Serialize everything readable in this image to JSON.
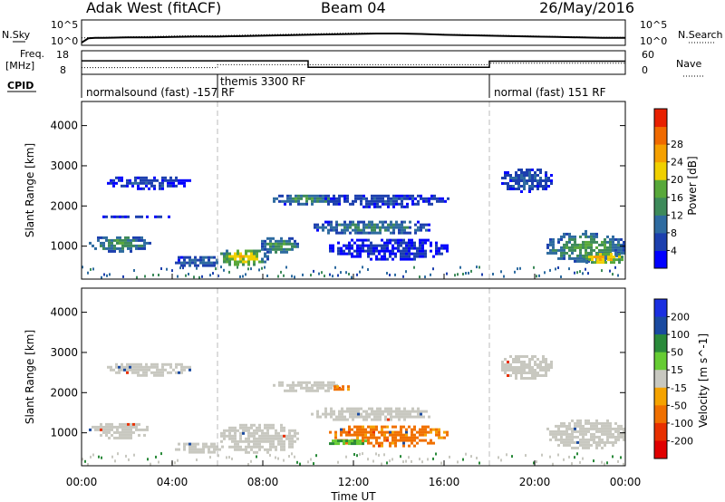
{
  "header": {
    "station": "Adak West (fitACF)",
    "beam": "Beam 04",
    "date": "26/May/2016"
  },
  "side_labels": {
    "nsky": "N.Sky",
    "nsearch": "N.Search",
    "freq_line1": "Freq.",
    "freq_line2": "[MHz]",
    "nave": "Nave",
    "cpid": "CPID"
  },
  "noise_panel": {
    "left_ticks": [
      "10^5",
      "10^0"
    ],
    "right_ticks": [
      "10^5",
      "10^0"
    ]
  },
  "freq_panel": {
    "left_ticks": [
      "18",
      "8"
    ],
    "right_ticks": [
      "60",
      "0"
    ]
  },
  "cpid_modes": [
    {
      "label": "normalsound (fast) -157 RF",
      "start": 0,
      "end": 6
    },
    {
      "label": "themis 3300 RF",
      "start": 6,
      "end": 18
    },
    {
      "label": "normal (fast) 151 RF",
      "start": 18,
      "end": 24
    }
  ],
  "colors": {
    "velocity_gray": "#c8c8c0",
    "power_scale": [
      "#0000ff",
      "#1c3fae",
      "#2e6ba0",
      "#3d8a5a",
      "#58a83a",
      "#f0d000",
      "#f5a000",
      "#f06a00",
      "#e82000"
    ],
    "velocity_scale": [
      "#1a2fe0",
      "#1a4aa0",
      "#2a8a3a",
      "#66cc33",
      "#c8c8c0",
      "#f5a300",
      "#f07000",
      "#e83000",
      "#e00000"
    ]
  },
  "chart_data": [
    {
      "type": "line",
      "title": "",
      "x_range": [
        0,
        24
      ],
      "series": [
        {
          "name": "N.Sky",
          "x": [
            0,
            0.3,
            0.6,
            1,
            2,
            3,
            4,
            5,
            6,
            7,
            8,
            9,
            10,
            11,
            12,
            13,
            14,
            15,
            16,
            17,
            18,
            19,
            20,
            21,
            22,
            23,
            24
          ],
          "y": [
            0.2,
            1.2,
            1.3,
            1.3,
            1.4,
            1.4,
            1.5,
            1.6,
            1.6,
            1.7,
            1.8,
            1.9,
            2.0,
            2.1,
            2.2,
            2.3,
            2.3,
            2.2,
            2.0,
            1.9,
            1.8,
            1.7,
            1.6,
            1.5,
            1.4,
            1.3,
            1.3
          ]
        },
        {
          "name": "N.Search",
          "x": [
            0,
            1,
            2,
            3,
            4,
            5,
            6,
            7,
            8,
            9,
            10,
            11,
            12,
            13,
            14,
            15,
            16,
            17,
            18,
            19,
            20,
            21,
            22,
            23,
            24
          ],
          "y": [
            1.3,
            1.4,
            1.5,
            1.6,
            1.7,
            1.8,
            1.8,
            1.9,
            2.0,
            2.1,
            2.2,
            2.3,
            2.4,
            2.4,
            2.3,
            2.2,
            2.1,
            2.0,
            1.9,
            1.8,
            1.7,
            1.6,
            1.5,
            1.4,
            1.4
          ]
        }
      ],
      "y_ticks": [
        "10^5",
        "10^0"
      ]
    },
    {
      "type": "line",
      "x_range": [
        0,
        24
      ],
      "series": [
        {
          "name": "Freq.",
          "x": [
            0,
            6,
            6,
            10,
            10,
            18,
            18,
            24
          ],
          "y": [
            13.8,
            13.8,
            13.8,
            13.8,
            10.8,
            10.8,
            13.6,
            13.6
          ]
        },
        {
          "name": "Nave",
          "x": [
            0,
            6,
            6,
            10,
            10,
            18,
            18,
            24
          ],
          "y": [
            16,
            16,
            24,
            24,
            24,
            24,
            28,
            28
          ]
        }
      ],
      "y_range_left": [
        8,
        18
      ],
      "y_range_right": [
        0,
        60
      ]
    },
    {
      "type": "heatmap",
      "quantity": "Power",
      "ylabel": "Slant Range [km]",
      "colorbar_label": "Power [dB]",
      "colorbar_ticks": [
        4,
        8,
        12,
        16,
        20,
        24,
        28
      ],
      "x_range": [
        0,
        24
      ],
      "y_range": [
        180,
        4600
      ],
      "y_ticks": [
        1000,
        2000,
        3000,
        4000
      ],
      "mode_boundaries": [
        6,
        18
      ],
      "regions": [
        {
          "t0": 0.2,
          "t1": 3.0,
          "r0": 880,
          "r1": 1310,
          "val": 15
        },
        {
          "t0": 1.0,
          "t1": 4.8,
          "r0": 2450,
          "r1": 2800,
          "val": 7
        },
        {
          "t0": 0.2,
          "t1": 4.5,
          "r0": 1750,
          "r1": 1830,
          "val": 6
        },
        {
          "t0": 4.0,
          "t1": 6.2,
          "r0": 500,
          "r1": 820,
          "val": 10
        },
        {
          "t0": 6.0,
          "t1": 8.2,
          "r0": 520,
          "r1": 980,
          "val": 23
        },
        {
          "t0": 7.8,
          "t1": 9.6,
          "r0": 820,
          "r1": 1290,
          "val": 16
        },
        {
          "t0": 8.2,
          "t1": 11.6,
          "r0": 2050,
          "r1": 2350,
          "val": 14
        },
        {
          "t0": 10.0,
          "t1": 15.5,
          "r0": 1300,
          "r1": 1700,
          "val": 13
        },
        {
          "t0": 10.6,
          "t1": 16.2,
          "r0": 2000,
          "r1": 2350,
          "val": 7
        },
        {
          "t0": 10.8,
          "t1": 16.2,
          "r0": 680,
          "r1": 1250,
          "val": 5
        },
        {
          "t0": 18.4,
          "t1": 20.8,
          "r0": 2350,
          "r1": 3000,
          "val": 8
        },
        {
          "t0": 20.4,
          "t1": 24.0,
          "r0": 600,
          "r1": 1400,
          "val": 16
        },
        {
          "t0": 22.0,
          "t1": 24.0,
          "r0": 560,
          "r1": 900,
          "val": 25
        }
      ]
    },
    {
      "type": "heatmap",
      "quantity": "Velocity",
      "ylabel": "Slant Range [km]",
      "xlabel": "Time UT",
      "colorbar_label": "Velocity [m s^-1]",
      "colorbar_ticks": [
        200,
        100,
        50,
        15,
        -15,
        -50,
        -100,
        -200
      ],
      "x_range": [
        0,
        24
      ],
      "y_range": [
        180,
        4600
      ],
      "y_ticks": [
        1000,
        2000,
        3000,
        4000
      ],
      "x_ticks": [
        "00:00",
        "04:00",
        "08:00",
        "12:00",
        "16:00",
        "20:00",
        "00:00"
      ],
      "mode_boundaries": [
        6,
        18
      ],
      "regions": [
        {
          "t0": 0.2,
          "t1": 3.0,
          "r0": 880,
          "r1": 1310,
          "val": 0
        },
        {
          "t0": 1.0,
          "t1": 4.8,
          "r0": 2450,
          "r1": 2800,
          "val": 0
        },
        {
          "t0": 4.0,
          "t1": 6.2,
          "r0": 500,
          "r1": 820,
          "val": 0
        },
        {
          "t0": 6.0,
          "t1": 9.6,
          "r0": 520,
          "r1": 1290,
          "val": 0
        },
        {
          "t0": 8.2,
          "t1": 11.6,
          "r0": 2050,
          "r1": 2350,
          "val": 0
        },
        {
          "t0": 11.0,
          "t1": 11.8,
          "r0": 2050,
          "r1": 2250,
          "val": -40
        },
        {
          "t0": 10.0,
          "t1": 15.5,
          "r0": 1300,
          "r1": 1700,
          "val": 0
        },
        {
          "t0": 10.8,
          "t1": 16.2,
          "r0": 680,
          "r1": 1250,
          "val": -40
        },
        {
          "t0": 10.8,
          "t1": 12.6,
          "r0": 700,
          "r1": 900,
          "val": 30
        },
        {
          "t0": 18.4,
          "t1": 20.8,
          "r0": 2350,
          "r1": 3000,
          "val": 0
        },
        {
          "t0": 20.4,
          "t1": 24.0,
          "r0": 600,
          "r1": 1400,
          "val": 0
        }
      ]
    }
  ],
  "axes": {
    "ylabel": "Slant Range [km]",
    "xlabel": "Time UT",
    "power_label": "Power [dB]",
    "velocity_label": "Velocity [m s^-1]"
  }
}
